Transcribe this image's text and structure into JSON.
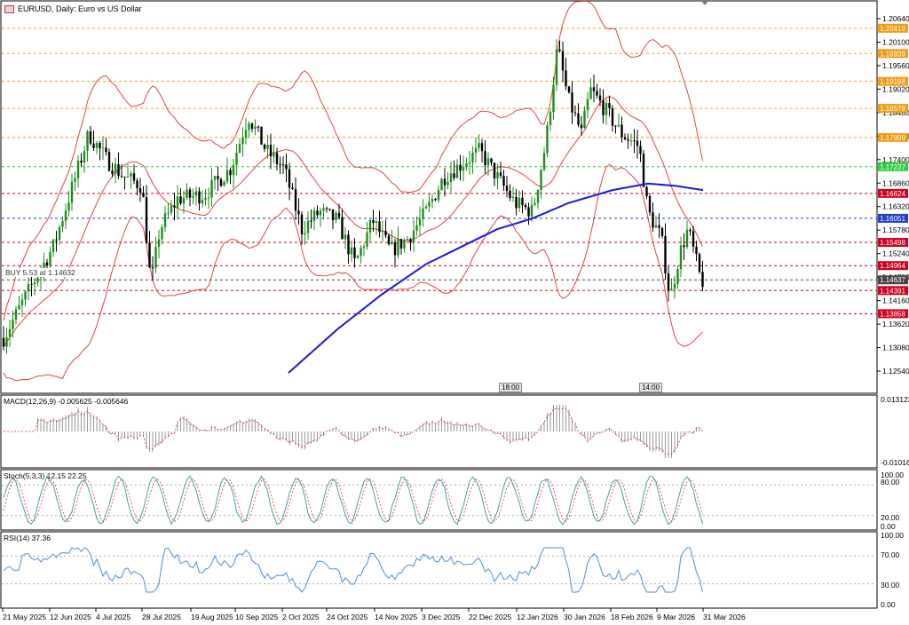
{
  "header": {
    "title": "EURUSD, Daily:  Euro vs US Dollar"
  },
  "trade": {
    "label": "BUY 5.53 at 1.14632"
  },
  "price_axis": {
    "ticks": [
      "1.20640",
      "1.20100",
      "1.19560",
      "1.19020",
      "1.18480",
      "1.17940",
      "1.17400",
      "1.16860",
      "1.16320",
      "1.15780",
      "1.15240",
      "1.14700",
      "1.14160",
      "1.13620",
      "1.13080",
      "1.12540"
    ],
    "levels": [
      {
        "value": "1.20419",
        "color": "#f39c12"
      },
      {
        "value": "1.19839",
        "color": "#f39c12"
      },
      {
        "value": "1.19198",
        "color": "#f39c12"
      },
      {
        "value": "1.18578",
        "color": "#f39c12"
      },
      {
        "value": "1.17909",
        "color": "#f39c12"
      },
      {
        "value": "1.17237",
        "color": "#2ecc40"
      },
      {
        "value": "1.16624",
        "color": "#d0021b"
      },
      {
        "value": "1.16051",
        "color": "#1f3fd1"
      },
      {
        "value": "1.15498",
        "color": "#d0021b"
      },
      {
        "value": "1.14964",
        "color": "#d0021b"
      },
      {
        "value": "1.14637",
        "color": "#444444"
      },
      {
        "value": "1.14391",
        "color": "#d0021b"
      },
      {
        "value": "1.13858",
        "color": "#d0021b"
      }
    ]
  },
  "time_axis": {
    "labels": [
      "21 May 2025",
      "12 Jun 2025",
      "4 Jul 2025",
      "28 Jul 2025",
      "19 Aug 2025",
      "10 Sep 2025",
      "2 Oct 2025",
      "24 Oct 2025",
      "14 Nov 2025",
      "3 Dec 2025",
      "22 Dec 2025",
      "12 Jan 2026",
      "30 Jan 2026",
      "18 Feb 2026",
      "9 Mar 2026",
      "31 Mar 2026"
    ],
    "session_tags": [
      "18:00",
      "14:00"
    ]
  },
  "macd": {
    "title": "MACD(12,26,9) -0.005625 -0.005646",
    "scale_top": "0.013123",
    "scale_bottom": "-0.010165"
  },
  "stoch": {
    "title": "Stoch(5,3,3) 12.15 22.25",
    "scale": [
      "100.00",
      "80.00",
      "20.00",
      "0.00"
    ]
  },
  "rsi": {
    "title": "RSI(14) 37.36",
    "scale": [
      "100.00",
      "70.00",
      "30.00",
      "0.00"
    ]
  },
  "colors": {
    "bull": "#1a8f1a",
    "bear": "#000000",
    "bollinger": "#e0302a",
    "ma200": "#1a1adf",
    "rsi_line": "#4a90d9",
    "stoch_main": "#2a9d8f",
    "signal": "#e0302a"
  }
}
